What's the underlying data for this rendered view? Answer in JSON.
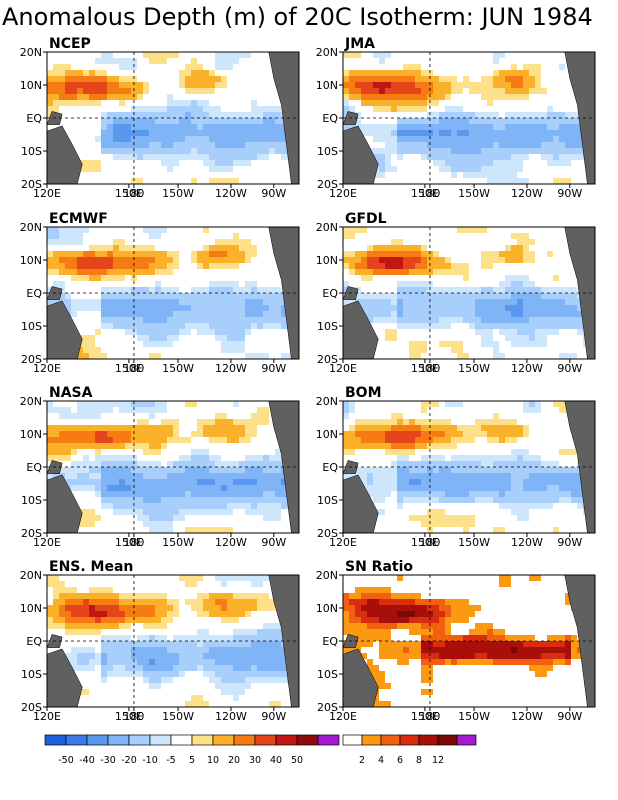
{
  "title": "Anomalous Depth (m) of 20C Isotherm: JUN 1984",
  "chart_data": {
    "type": "heatmap",
    "x_ticks": [
      "120E",
      "150E",
      "180",
      "150W",
      "120W",
      "90W"
    ],
    "y_ticks": [
      "20N",
      "10N",
      "EQ",
      "10S",
      "20S"
    ],
    "grid": false,
    "panels": [
      {
        "name": "NCEP",
        "scale": "anomaly"
      },
      {
        "name": "JMA",
        "scale": "anomaly"
      },
      {
        "name": "ECMWF",
        "scale": "anomaly"
      },
      {
        "name": "GFDL",
        "scale": "anomaly"
      },
      {
        "name": "NASA",
        "scale": "anomaly"
      },
      {
        "name": "BOM",
        "scale": "anomaly"
      },
      {
        "name": "ENS. Mean",
        "scale": "anomaly"
      },
      {
        "name": "SN Ratio",
        "scale": "snr"
      }
    ],
    "anomaly_colorbar": {
      "labels": [
        "-50",
        "-40",
        "-30",
        "-20",
        "-10",
        "-5",
        "5",
        "10",
        "20",
        "30",
        "40",
        "50"
      ],
      "colors": [
        "#1f5fd9",
        "#3a7be8",
        "#5a98f0",
        "#7fb4f7",
        "#a8cefb",
        "#cde6fc",
        "#ffffff",
        "#fde08a",
        "#fbb02a",
        "#f57b12",
        "#e5451a",
        "#c11613",
        "#8a0c0c",
        "#a11ad1"
      ]
    },
    "snr_colorbar": {
      "labels": [
        "2",
        "4",
        "6",
        "8",
        "12"
      ],
      "colors": [
        "#ffffff",
        "#fb9a12",
        "#f06010",
        "#d92d10",
        "#a80e0a",
        "#7a0808",
        "#a31cd0"
      ]
    }
  }
}
